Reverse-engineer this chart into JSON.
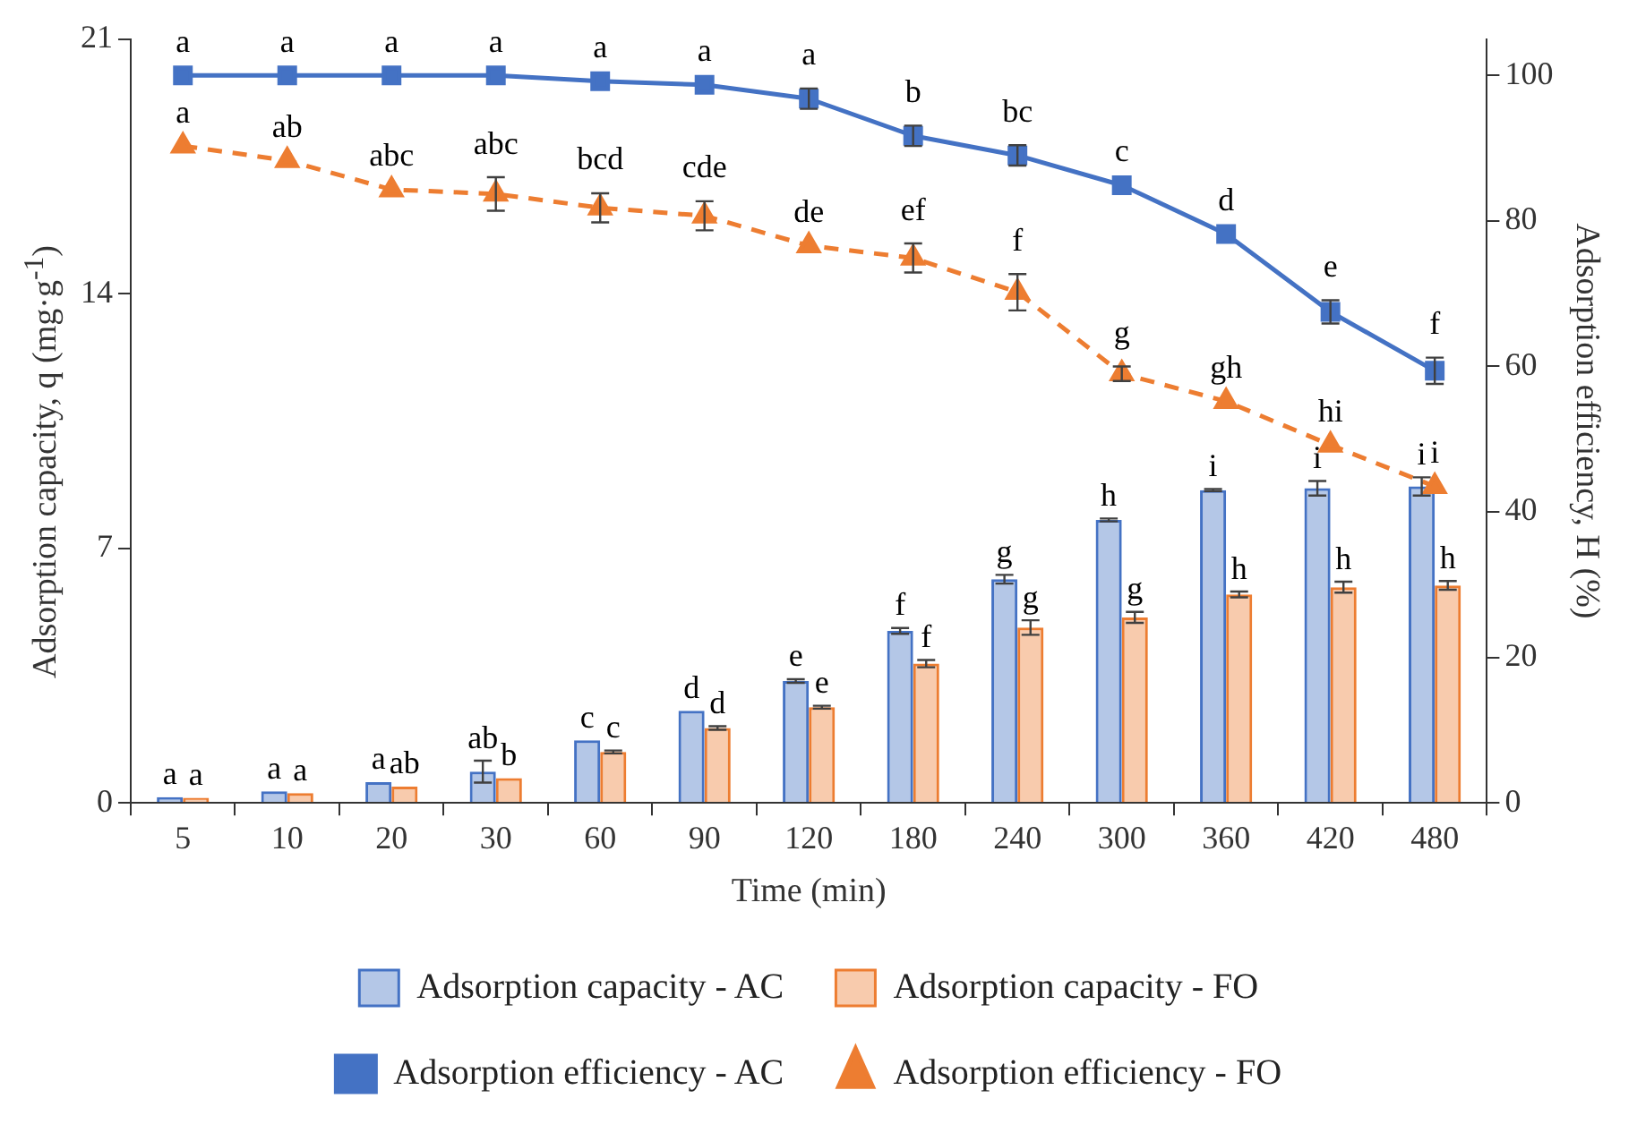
{
  "chart_data": {
    "type": "bar",
    "xlabel": "Time (min)",
    "ylabel": "Adsorption capacity, q (mg·g$^{-1}$)",
    "y2label": "Adsorption efficiency, H (%)",
    "categories": [
      "5",
      "10",
      "20",
      "30",
      "60",
      "90",
      "120",
      "180",
      "240",
      "300",
      "360",
      "420",
      "480"
    ],
    "ylim": [
      0,
      21
    ],
    "yticks": [
      0,
      7,
      14,
      21
    ],
    "y2lim": [
      0,
      105
    ],
    "y2ticks": [
      0,
      20,
      40,
      60,
      80,
      100
    ],
    "grid": false,
    "legend": "bottom",
    "series": [
      {
        "name": "Adsorption capacity - AC",
        "color": "#4472c4",
        "values": [
          0.16,
          0.32,
          0.57,
          0.86,
          1.72,
          2.53,
          3.35,
          4.73,
          6.15,
          7.78,
          8.6,
          8.65,
          8.7
        ],
        "errors": [
          null,
          null,
          null,
          0.3,
          null,
          null,
          0.05,
          0.08,
          0.12,
          0.04,
          0.03,
          0.2,
          0.25
        ],
        "value_labels": [
          "a",
          "a",
          "a",
          "ab",
          "c",
          "d",
          "e",
          "f",
          "g",
          "h",
          "i",
          "i",
          "i"
        ]
      },
      {
        "name": "Adsorption capacity - FO",
        "color": "#ed7d31",
        "values": [
          0.14,
          0.27,
          0.45,
          0.68,
          1.4,
          2.06,
          2.63,
          3.83,
          4.82,
          5.1,
          5.73,
          5.93,
          5.98
        ],
        "errors": [
          null,
          null,
          null,
          null,
          0.04,
          0.05,
          0.04,
          0.1,
          0.2,
          0.15,
          0.08,
          0.15,
          0.12
        ],
        "value_labels": [
          "a",
          "a",
          "ab",
          "b",
          "c",
          "d",
          "e",
          "f",
          "g",
          "g",
          "h",
          "h",
          "h"
        ]
      },
      {
        "name": "Adsorption efficiency - AC",
        "type": "line",
        "axis": "y2",
        "color": "#4472c4",
        "marker": "square",
        "line_style": "solid",
        "values": [
          100,
          100,
          100,
          100,
          99.2,
          98.7,
          96.8,
          91.7,
          89,
          84.9,
          78.2,
          67.5,
          59.4
        ],
        "errors": [
          null,
          null,
          null,
          null,
          null,
          null,
          1.4,
          1.4,
          1.4,
          null,
          null,
          1.6,
          1.8
        ],
        "value_labels": [
          "a",
          "a",
          "a",
          "a",
          "a",
          "a",
          "a",
          "b",
          "bc",
          "c",
          "d",
          "e",
          "f"
        ]
      },
      {
        "name": "Adsorption efficiency - FO",
        "type": "line",
        "axis": "y2",
        "color": "#ed7d31",
        "marker": "triangle",
        "line_style": "dashed",
        "values": [
          90.3,
          88.3,
          84.3,
          83.7,
          81.8,
          80.7,
          76.6,
          74.9,
          70.2,
          59,
          55.2,
          49.2,
          43.5
        ],
        "errors": [
          null,
          null,
          null,
          2.3,
          2,
          2,
          null,
          2,
          2.5,
          1,
          null,
          null,
          null
        ],
        "value_labels": [
          "a",
          "ab",
          "abc",
          "abc",
          "bcd",
          "cde",
          "de",
          "ef",
          "f",
          "g",
          "gh",
          "hi",
          "i"
        ]
      }
    ]
  }
}
